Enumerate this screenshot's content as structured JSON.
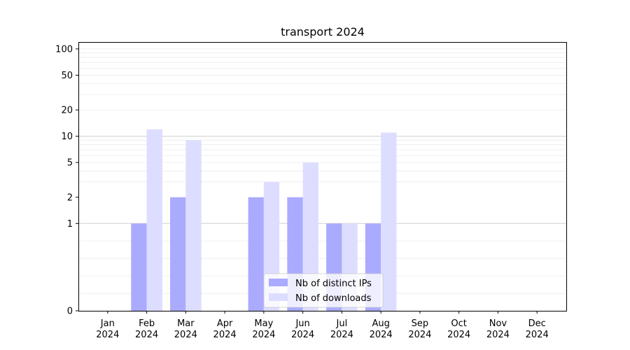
{
  "chart_data": {
    "type": "bar",
    "title": "transport 2024",
    "xlabel": "",
    "ylabel": "",
    "categories": [
      [
        "Jan",
        "2024"
      ],
      [
        "Feb",
        "2024"
      ],
      [
        "Mar",
        "2024"
      ],
      [
        "Apr",
        "2024"
      ],
      [
        "May",
        "2024"
      ],
      [
        "Jun",
        "2024"
      ],
      [
        "Jul",
        "2024"
      ],
      [
        "Aug",
        "2024"
      ],
      [
        "Sep",
        "2024"
      ],
      [
        "Oct",
        "2024"
      ],
      [
        "Nov",
        "2024"
      ],
      [
        "Dec",
        "2024"
      ]
    ],
    "y_scale": "symlog",
    "ylim": [
      0,
      120
    ],
    "y_ticks": [
      "0",
      "1",
      "2",
      "5",
      "10",
      "20",
      "50",
      "100"
    ],
    "grid": "horizontal",
    "legend_position": "lower center",
    "series": [
      {
        "name": "Nb of distinct IPs",
        "color": "#aaaaff",
        "values": [
          0,
          1,
          2,
          0,
          2,
          2,
          1,
          1,
          0,
          0,
          0,
          0
        ]
      },
      {
        "name": "Nb of downloads",
        "color": "#ddddff",
        "values": [
          0,
          12,
          9,
          0,
          3,
          5,
          1,
          11,
          0,
          0,
          0,
          0
        ]
      }
    ]
  }
}
